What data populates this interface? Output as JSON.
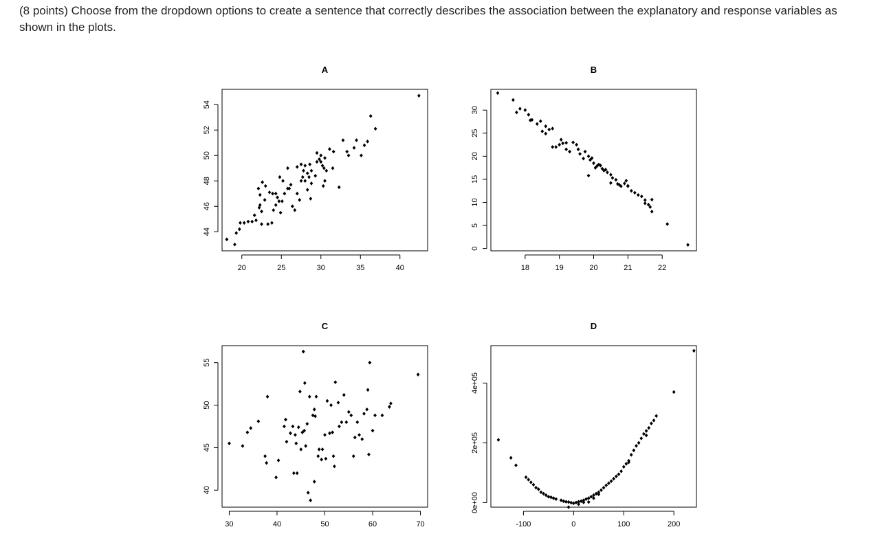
{
  "question": {
    "text": "(8 points) Choose from the dropdown options to create a sentence that correctly describes the association between the explanatory and response variables as shown in the plots."
  },
  "chart_data": [
    {
      "id": "A",
      "type": "scatter",
      "title": "A",
      "xlim": [
        17.5,
        43.5
      ],
      "ylim": [
        42.5,
        55.2
      ],
      "xticks": [
        20,
        25,
        30,
        35,
        40
      ],
      "xtick_labels": [
        "20",
        "25",
        "30",
        "35",
        "40"
      ],
      "yticks": [
        44,
        46,
        48,
        50,
        52,
        54
      ],
      "ytick_labels": [
        "44",
        "46",
        "48",
        "50",
        "52",
        "54"
      ],
      "points": [
        [
          18.1,
          43.4
        ],
        [
          19.1,
          43.0
        ],
        [
          19.3,
          43.9
        ],
        [
          19.7,
          44.2
        ],
        [
          19.8,
          44.7
        ],
        [
          20.3,
          44.7
        ],
        [
          20.8,
          44.8
        ],
        [
          21.3,
          44.8
        ],
        [
          21.6,
          45.3
        ],
        [
          21.8,
          44.9
        ],
        [
          22.2,
          45.9
        ],
        [
          22.3,
          46.1
        ],
        [
          22.5,
          45.6
        ],
        [
          22.9,
          46.5
        ],
        [
          22.3,
          46.9
        ],
        [
          22.1,
          47.4
        ],
        [
          22.6,
          47.9
        ],
        [
          23.0,
          47.6
        ],
        [
          22.5,
          44.6
        ],
        [
          23.3,
          44.6
        ],
        [
          23.8,
          44.7
        ],
        [
          24.0,
          45.7
        ],
        [
          24.3,
          46.1
        ],
        [
          24.5,
          46.7
        ],
        [
          23.5,
          47.1
        ],
        [
          23.9,
          47.0
        ],
        [
          24.3,
          47.0
        ],
        [
          24.7,
          46.4
        ],
        [
          25.1,
          46.4
        ],
        [
          24.9,
          45.5
        ],
        [
          25.4,
          47.0
        ],
        [
          25.8,
          47.4
        ],
        [
          26.0,
          47.4
        ],
        [
          26.2,
          47.7
        ],
        [
          24.8,
          48.3
        ],
        [
          25.2,
          48.0
        ],
        [
          25.8,
          49.0
        ],
        [
          26.4,
          46.0
        ],
        [
          26.7,
          45.7
        ],
        [
          27.0,
          47.0
        ],
        [
          27.3,
          46.5
        ],
        [
          27.5,
          48.0
        ],
        [
          27.7,
          48.3
        ],
        [
          28.0,
          48.0
        ],
        [
          28.3,
          48.6
        ],
        [
          28.5,
          48.3
        ],
        [
          28.8,
          48.8
        ],
        [
          28.0,
          49.2
        ],
        [
          28.6,
          49.3
        ],
        [
          28.8,
          47.8
        ],
        [
          28.3,
          47.3
        ],
        [
          28.7,
          46.6
        ],
        [
          27.0,
          49.1
        ],
        [
          27.5,
          49.3
        ],
        [
          27.8,
          48.8
        ],
        [
          29.3,
          48.4
        ],
        [
          29.5,
          49.5
        ],
        [
          29.8,
          49.7
        ],
        [
          30.0,
          49.5
        ],
        [
          30.2,
          49.2
        ],
        [
          30.4,
          49.0
        ],
        [
          30.7,
          48.8
        ],
        [
          30.0,
          50.0
        ],
        [
          30.5,
          49.8
        ],
        [
          29.5,
          50.2
        ],
        [
          30.5,
          48.0
        ],
        [
          30.3,
          47.6
        ],
        [
          31.1,
          50.5
        ],
        [
          31.6,
          50.3
        ],
        [
          31.5,
          49.0
        ],
        [
          32.3,
          47.5
        ],
        [
          32.8,
          51.2
        ],
        [
          33.3,
          50.3
        ],
        [
          33.5,
          50.0
        ],
        [
          34.2,
          50.6
        ],
        [
          34.5,
          51.2
        ],
        [
          35.1,
          50.0
        ],
        [
          35.5,
          50.8
        ],
        [
          35.9,
          51.1
        ],
        [
          36.3,
          53.1
        ],
        [
          36.9,
          52.1
        ],
        [
          42.4,
          54.7
        ]
      ]
    },
    {
      "id": "B",
      "type": "scatter",
      "title": "B",
      "xlim": [
        17.0,
        23.0
      ],
      "ylim": [
        -0.5,
        34.5
      ],
      "xticks": [
        18,
        19,
        20,
        21,
        22
      ],
      "xtick_labels": [
        "18",
        "19",
        "20",
        "21",
        "22"
      ],
      "yticks": [
        0,
        5,
        10,
        15,
        20,
        25,
        30
      ],
      "ytick_labels": [
        "0",
        "5",
        "10",
        "15",
        "20",
        "25",
        "30"
      ],
      "points": [
        [
          17.2,
          33.7
        ],
        [
          17.65,
          32.2
        ],
        [
          17.75,
          29.5
        ],
        [
          17.85,
          30.3
        ],
        [
          18.0,
          30.0
        ],
        [
          18.1,
          29.0
        ],
        [
          18.15,
          27.8
        ],
        [
          18.2,
          27.9
        ],
        [
          18.35,
          27.0
        ],
        [
          18.45,
          27.6
        ],
        [
          18.5,
          25.4
        ],
        [
          18.6,
          26.5
        ],
        [
          18.7,
          25.8
        ],
        [
          18.8,
          26.0
        ],
        [
          18.6,
          24.9
        ],
        [
          18.8,
          22.0
        ],
        [
          18.9,
          22.0
        ],
        [
          19.0,
          22.5
        ],
        [
          19.05,
          23.6
        ],
        [
          19.1,
          22.8
        ],
        [
          19.2,
          22.9
        ],
        [
          19.2,
          21.5
        ],
        [
          19.3,
          21.0
        ],
        [
          19.4,
          23.0
        ],
        [
          19.5,
          22.5
        ],
        [
          19.55,
          21.5
        ],
        [
          19.6,
          20.5
        ],
        [
          19.7,
          19.5
        ],
        [
          19.75,
          21.0
        ],
        [
          19.85,
          20.0
        ],
        [
          19.9,
          19.2
        ],
        [
          19.95,
          19.6
        ],
        [
          20.0,
          18.5
        ],
        [
          20.05,
          17.5
        ],
        [
          20.1,
          17.9
        ],
        [
          20.15,
          18.2
        ],
        [
          20.2,
          18.0
        ],
        [
          20.25,
          17.3
        ],
        [
          20.3,
          16.9
        ],
        [
          20.35,
          17.1
        ],
        [
          19.85,
          15.8
        ],
        [
          20.4,
          16.5
        ],
        [
          20.5,
          16.0
        ],
        [
          20.55,
          15.3
        ],
        [
          20.65,
          14.9
        ],
        [
          20.5,
          14.2
        ],
        [
          20.7,
          14.0
        ],
        [
          20.75,
          13.8
        ],
        [
          20.8,
          13.5
        ],
        [
          20.9,
          14.1
        ],
        [
          21.0,
          13.5
        ],
        [
          20.95,
          14.7
        ],
        [
          21.0,
          13.6
        ],
        [
          21.1,
          12.5
        ],
        [
          21.2,
          12.1
        ],
        [
          21.3,
          11.6
        ],
        [
          21.4,
          11.3
        ],
        [
          21.5,
          10.5
        ],
        [
          21.5,
          9.8
        ],
        [
          21.6,
          9.5
        ],
        [
          21.65,
          9.0
        ],
        [
          21.7,
          10.6
        ],
        [
          21.7,
          8.0
        ],
        [
          22.15,
          5.3
        ],
        [
          22.75,
          0.8
        ]
      ]
    },
    {
      "id": "C",
      "type": "scatter",
      "title": "C",
      "xlim": [
        28.5,
        71.5
      ],
      "ylim": [
        38.0,
        57.0
      ],
      "xticks": [
        30,
        40,
        50,
        60,
        70
      ],
      "xtick_labels": [
        "30",
        "40",
        "50",
        "60",
        "70"
      ],
      "yticks": [
        40,
        45,
        50,
        55
      ],
      "ytick_labels": [
        "40",
        "45",
        "50",
        "55"
      ],
      "points": [
        [
          30.0,
          45.5
        ],
        [
          32.8,
          45.2
        ],
        [
          33.8,
          46.8
        ],
        [
          34.5,
          47.3
        ],
        [
          36.1,
          48.1
        ],
        [
          37.5,
          44.0
        ],
        [
          37.8,
          43.2
        ],
        [
          38.0,
          51.0
        ],
        [
          39.8,
          41.5
        ],
        [
          40.3,
          43.5
        ],
        [
          41.5,
          47.5
        ],
        [
          41.8,
          48.3
        ],
        [
          42.0,
          45.7
        ],
        [
          42.8,
          46.7
        ],
        [
          43.3,
          47.5
        ],
        [
          43.5,
          42.0
        ],
        [
          43.8,
          46.5
        ],
        [
          44.0,
          45.5
        ],
        [
          44.2,
          42.0
        ],
        [
          44.5,
          47.4
        ],
        [
          44.8,
          51.6
        ],
        [
          45.0,
          44.8
        ],
        [
          45.3,
          46.8
        ],
        [
          45.5,
          56.3
        ],
        [
          45.8,
          52.6
        ],
        [
          45.7,
          47.0
        ],
        [
          46.0,
          45.2
        ],
        [
          46.3,
          47.8
        ],
        [
          46.5,
          39.7
        ],
        [
          46.8,
          51.0
        ],
        [
          47.0,
          38.8
        ],
        [
          47.5,
          48.8
        ],
        [
          47.8,
          49.5
        ],
        [
          47.8,
          41.0
        ],
        [
          48.0,
          48.7
        ],
        [
          48.2,
          51.0
        ],
        [
          48.6,
          44.0
        ],
        [
          48.8,
          44.8
        ],
        [
          49.3,
          43.6
        ],
        [
          49.5,
          44.8
        ],
        [
          50.0,
          46.5
        ],
        [
          50.2,
          43.7
        ],
        [
          50.5,
          50.5
        ],
        [
          51.0,
          46.7
        ],
        [
          51.3,
          50.0
        ],
        [
          51.6,
          46.8
        ],
        [
          51.8,
          44.0
        ],
        [
          52.0,
          42.8
        ],
        [
          52.2,
          52.7
        ],
        [
          52.8,
          50.3
        ],
        [
          53.0,
          47.5
        ],
        [
          53.5,
          48.0
        ],
        [
          54.0,
          51.2
        ],
        [
          54.5,
          48.0
        ],
        [
          55.0,
          49.2
        ],
        [
          55.5,
          48.8
        ],
        [
          56.0,
          44.0
        ],
        [
          56.3,
          46.2
        ],
        [
          56.8,
          48.0
        ],
        [
          57.2,
          46.5
        ],
        [
          57.8,
          46.0
        ],
        [
          58.2,
          49.0
        ],
        [
          58.8,
          49.5
        ],
        [
          59.0,
          51.8
        ],
        [
          59.2,
          44.2
        ],
        [
          59.4,
          55.0
        ],
        [
          60.0,
          47.0
        ],
        [
          60.5,
          48.8
        ],
        [
          62.0,
          48.8
        ],
        [
          63.5,
          49.8
        ],
        [
          63.8,
          50.2
        ],
        [
          69.5,
          53.6
        ]
      ]
    },
    {
      "id": "D",
      "type": "scatter",
      "title": "D",
      "xlim": [
        -165,
        245
      ],
      "ylim": [
        -15000,
        525000
      ],
      "xticks": [
        -100,
        0,
        100,
        200
      ],
      "xtick_labels": [
        "-100",
        "0",
        "100",
        "200"
      ],
      "yticks": [
        0,
        200000,
        400000
      ],
      "ytick_labels": [
        "0e+00",
        "2e+05",
        "4e+05"
      ],
      "points": [
        [
          -150,
          210000
        ],
        [
          -125,
          150000
        ],
        [
          -115,
          125000
        ],
        [
          -95,
          85000
        ],
        [
          -90,
          77000
        ],
        [
          -85,
          68000
        ],
        [
          -80,
          60000
        ],
        [
          -75,
          50000
        ],
        [
          -65,
          35000
        ],
        [
          -60,
          30000
        ],
        [
          -55,
          25000
        ],
        [
          -45,
          18000
        ],
        [
          -35,
          12000
        ],
        [
          -25,
          8000
        ],
        [
          -20,
          5000
        ],
        [
          -10,
          2000
        ],
        [
          -5,
          0
        ],
        [
          0,
          -2000
        ],
        [
          5,
          500
        ],
        [
          10,
          3000
        ],
        [
          15,
          5000
        ],
        [
          20,
          8000
        ],
        [
          25,
          12000
        ],
        [
          30,
          15000
        ],
        [
          35,
          20000
        ],
        [
          40,
          25000
        ],
        [
          45,
          30000
        ],
        [
          50,
          35000
        ],
        [
          55,
          42000
        ],
        [
          60,
          50000
        ],
        [
          65,
          58000
        ],
        [
          70,
          65000
        ],
        [
          75,
          72000
        ],
        [
          80,
          80000
        ],
        [
          85,
          88000
        ],
        [
          90,
          95000
        ],
        [
          95,
          105000
        ],
        [
          100,
          120000
        ],
        [
          105,
          130000
        ],
        [
          110,
          140000
        ],
        [
          115,
          160000
        ],
        [
          120,
          175000
        ],
        [
          125,
          190000
        ],
        [
          130,
          200000
        ],
        [
          135,
          215000
        ],
        [
          140,
          230000
        ],
        [
          145,
          240000
        ],
        [
          150,
          250000
        ],
        [
          155,
          265000
        ],
        [
          160,
          275000
        ],
        [
          165,
          290000
        ],
        [
          -10,
          -15000
        ],
        [
          -40,
          15000
        ],
        [
          -70,
          45000
        ],
        [
          200,
          370000
        ],
        [
          240,
          508000
        ],
        [
          110,
          135000
        ],
        [
          145,
          225000
        ],
        [
          -50,
          20000
        ],
        [
          30,
          2000
        ],
        [
          -15,
          3000
        ],
        [
          50,
          28000
        ],
        [
          10,
          -5000
        ],
        [
          20,
          1000
        ],
        [
          40,
          15000
        ]
      ]
    }
  ]
}
